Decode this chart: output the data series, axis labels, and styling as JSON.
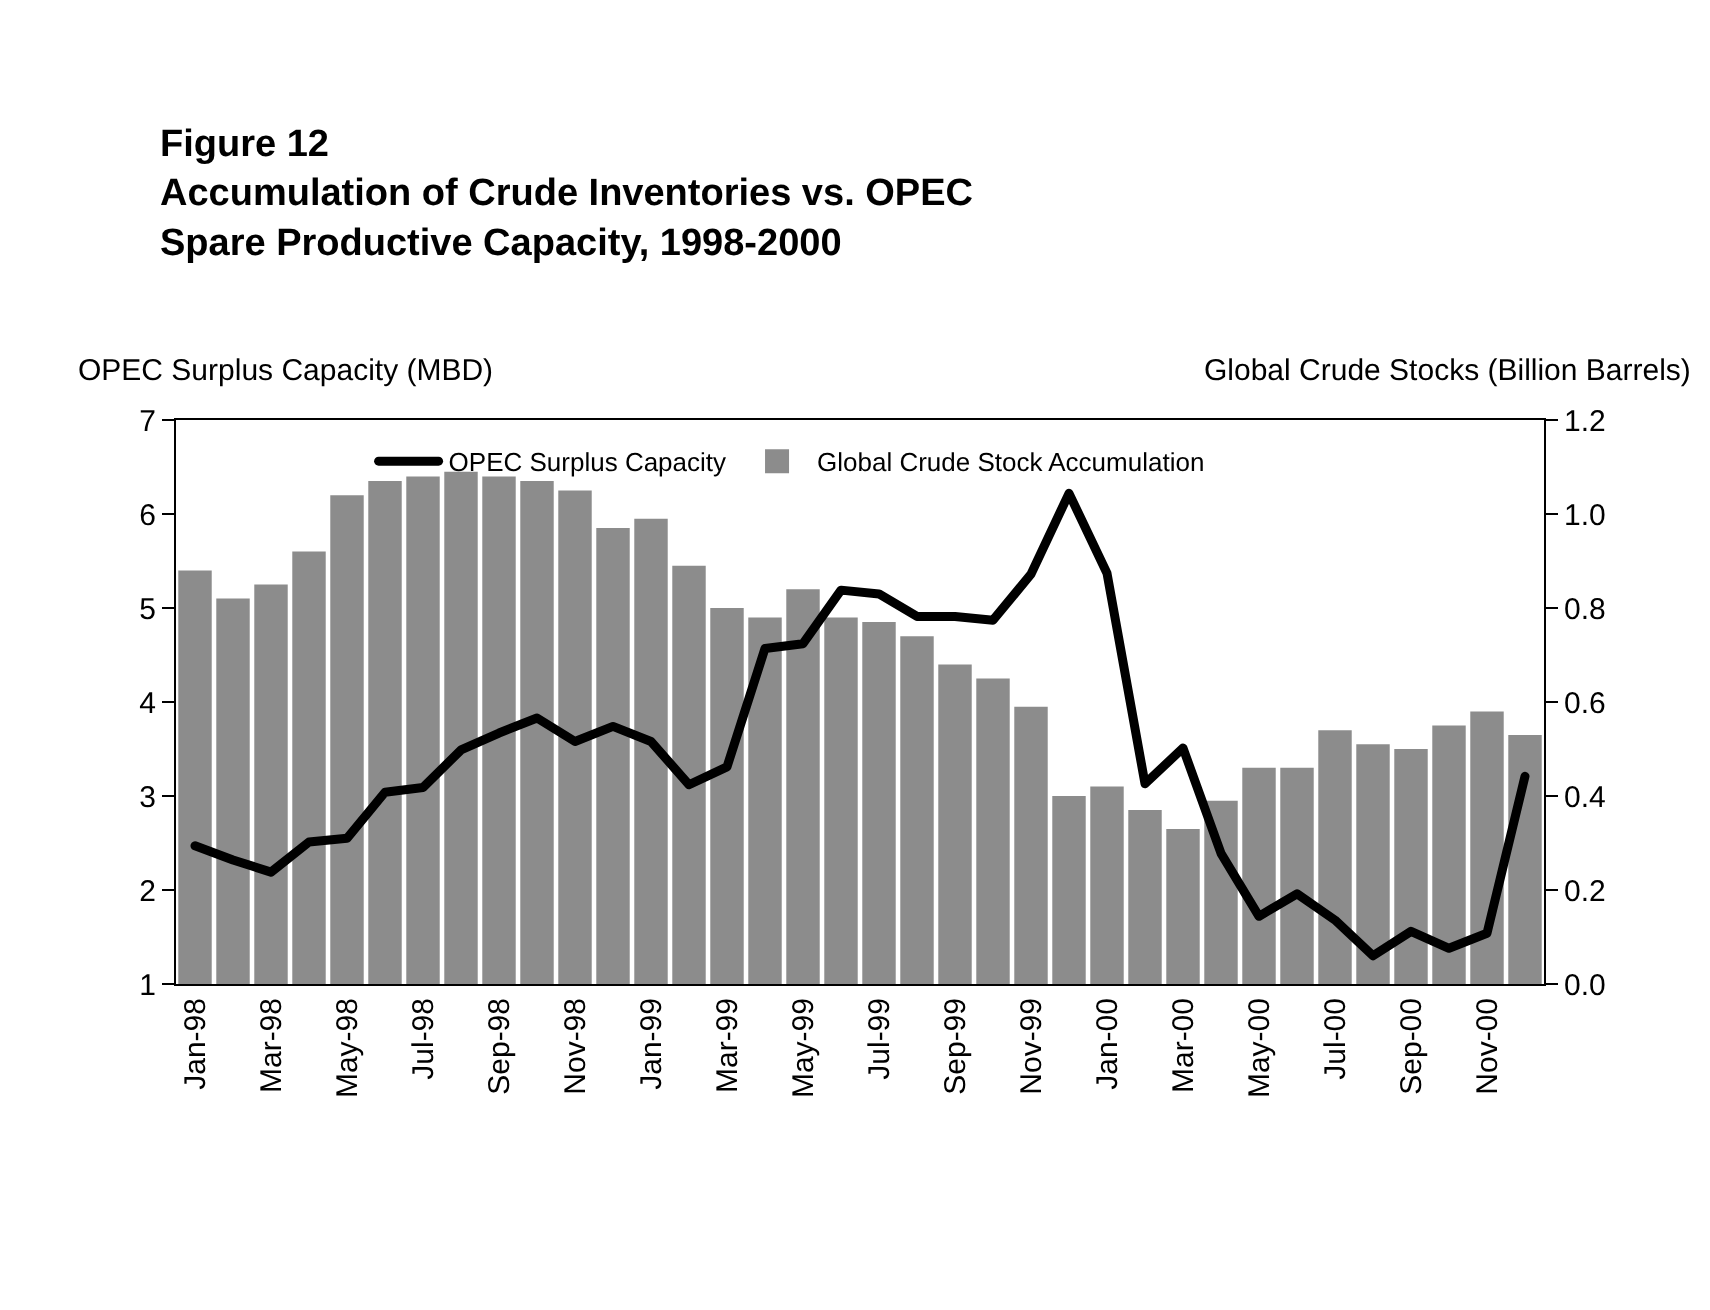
{
  "chart_data": {
    "type": "bar",
    "title": "Figure 12\nAccumulation of Crude Inventories vs. OPEC\nSpare Productive Capacity, 1998-2000",
    "ylabel": "OPEC Surplus Capacity (MBD)",
    "y2label": "Global Crude Stocks (Billion Barrels)",
    "categories": [
      "Jan-98",
      null,
      "Mar-98",
      null,
      "May-98",
      null,
      "Jul-98",
      null,
      "Sep-98",
      null,
      "Nov-98",
      null,
      "Jan-99",
      null,
      "Mar-99",
      null,
      "May-99",
      null,
      "Jul-99",
      null,
      "Sep-99",
      null,
      "Nov-99",
      null,
      "Jan-00",
      null,
      "Mar-00",
      null,
      "May-00",
      null,
      "Jul-00",
      null,
      "Sep-00",
      null,
      "Nov-00",
      null
    ],
    "series": [
      {
        "name": "OPEC Surplus Capacity",
        "type": "line",
        "color": "#000000",
        "values": [
          2.47,
          2.32,
          2.19,
          2.51,
          2.55,
          3.04,
          3.09,
          3.49,
          3.67,
          3.83,
          3.58,
          3.74,
          3.58,
          3.12,
          3.31,
          4.57,
          4.62,
          5.19,
          5.15,
          4.91,
          4.91,
          4.87,
          5.36,
          6.22,
          5.37,
          3.13,
          3.51,
          2.39,
          1.72,
          1.96,
          1.68,
          1.3,
          1.56,
          1.38,
          1.54,
          3.21
        ]
      },
      {
        "name": "Global Crude Stock Accumulation",
        "axis": "y2",
        "color": "#8c8c8c",
        "values": [
          0.88,
          0.82,
          0.85,
          0.92,
          1.04,
          1.07,
          1.08,
          1.09,
          1.08,
          1.07,
          1.05,
          0.97,
          0.99,
          0.89,
          0.8,
          0.78,
          0.84,
          0.78,
          0.77,
          0.74,
          0.68,
          0.65,
          0.59,
          0.4,
          0.42,
          0.37,
          0.33,
          0.39,
          0.46,
          0.46,
          0.54,
          0.51,
          0.5,
          0.55,
          0.58,
          0.53
        ]
      }
    ],
    "ylim": [
      1,
      7
    ],
    "yticks": [
      1,
      2,
      3,
      4,
      5,
      6,
      7
    ],
    "y2lim": [
      0,
      1.2
    ],
    "y2ticks": [
      {
        "value": 0,
        "label": "0.0"
      },
      {
        "value": 0.2,
        "label": "0.2"
      },
      {
        "value": 0.4,
        "label": "0.4"
      },
      {
        "value": 0.6,
        "label": "0.6"
      },
      {
        "value": 0.8,
        "label": "0.8"
      },
      {
        "value": 1,
        "label": "1.0"
      },
      {
        "value": 1.2,
        "label": "1.2"
      }
    ],
    "legend": "top"
  }
}
